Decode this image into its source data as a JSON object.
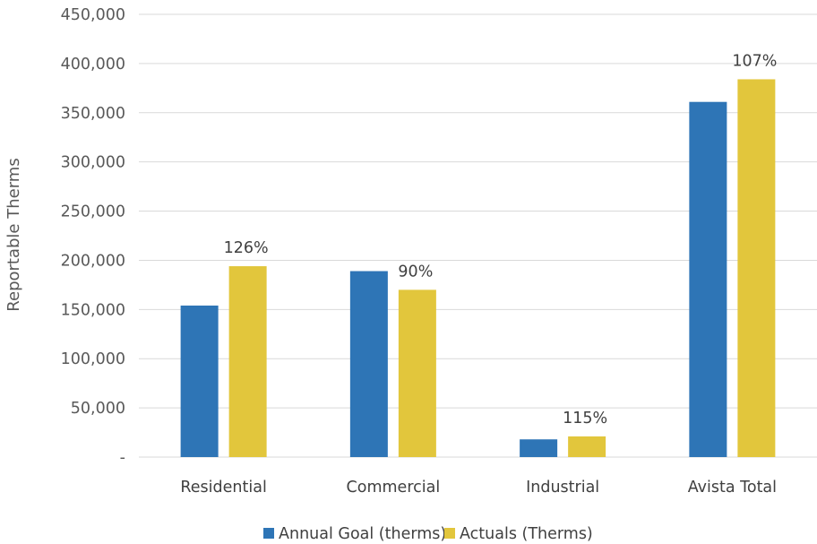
{
  "chart_data": {
    "type": "bar",
    "title": "",
    "xlabel": "",
    "ylabel": "Reportable Therms",
    "ylim": [
      0,
      450000
    ],
    "y_ticks": [
      0,
      50000,
      100000,
      150000,
      200000,
      250000,
      300000,
      350000,
      400000,
      450000
    ],
    "y_tick_labels": [
      "-",
      "50,000",
      "100,000",
      "150,000",
      "200,000",
      "250,000",
      "300,000",
      "350,000",
      "400,000",
      "450,000"
    ],
    "categories": [
      "Residential",
      "Commercial",
      "Industrial",
      "Avista Total"
    ],
    "series": [
      {
        "name": "Annual Goal (therms)",
        "color": "#2e75b6",
        "values": [
          154000,
          189000,
          18000,
          361000
        ]
      },
      {
        "name": "Actuals (Therms)",
        "color": "#e2c63c",
        "values": [
          194000,
          170000,
          21000,
          384000
        ]
      }
    ],
    "data_labels": [
      "126%",
      "90%",
      "115%",
      "107%"
    ],
    "grid": true,
    "legend_position": "bottom"
  }
}
